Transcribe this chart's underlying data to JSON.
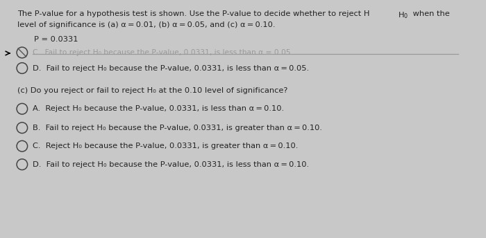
{
  "bg_color": "#c8c8c8",
  "panel_color": "#f2efe8",
  "text_color": "#222222",
  "line1a": "The P-value for a hypothesis test is shown. Use the P-value to decide whether to reject H",
  "line1b": "when the",
  "line2": "level of significance is (a) α = 0.01, (b) α = 0.05, and (c) α = 0.10.",
  "pval": "P = 0.0331",
  "crossed": "C.  Fail to reject H₀ because the P -value, 0.0331, is less than α = 0.05.",
  "optDb": "D.  Fail to reject H₀ because the P-value, 0.0331, is less than α = 0.05.",
  "sec_c": "(c) Do you reject or fail to reject H₀ at the 0.10 level of significance?",
  "optA": "A.  Reject H₀ because the P-value, 0.0331, is less than α = 0.10.",
  "optB": "B.  Fail to reject H₀ because the P-value, 0.0331, is greater than α = 0.10.",
  "optC": "C.  Reject H₀ because the P-value, 0.0331, is greater than α = 0.10.",
  "optD": "D.  Fail to reject H₀ because the P-value, 0.0331, is less than α = 0.10.",
  "font_size": 8.2,
  "circle_r": 0.012
}
